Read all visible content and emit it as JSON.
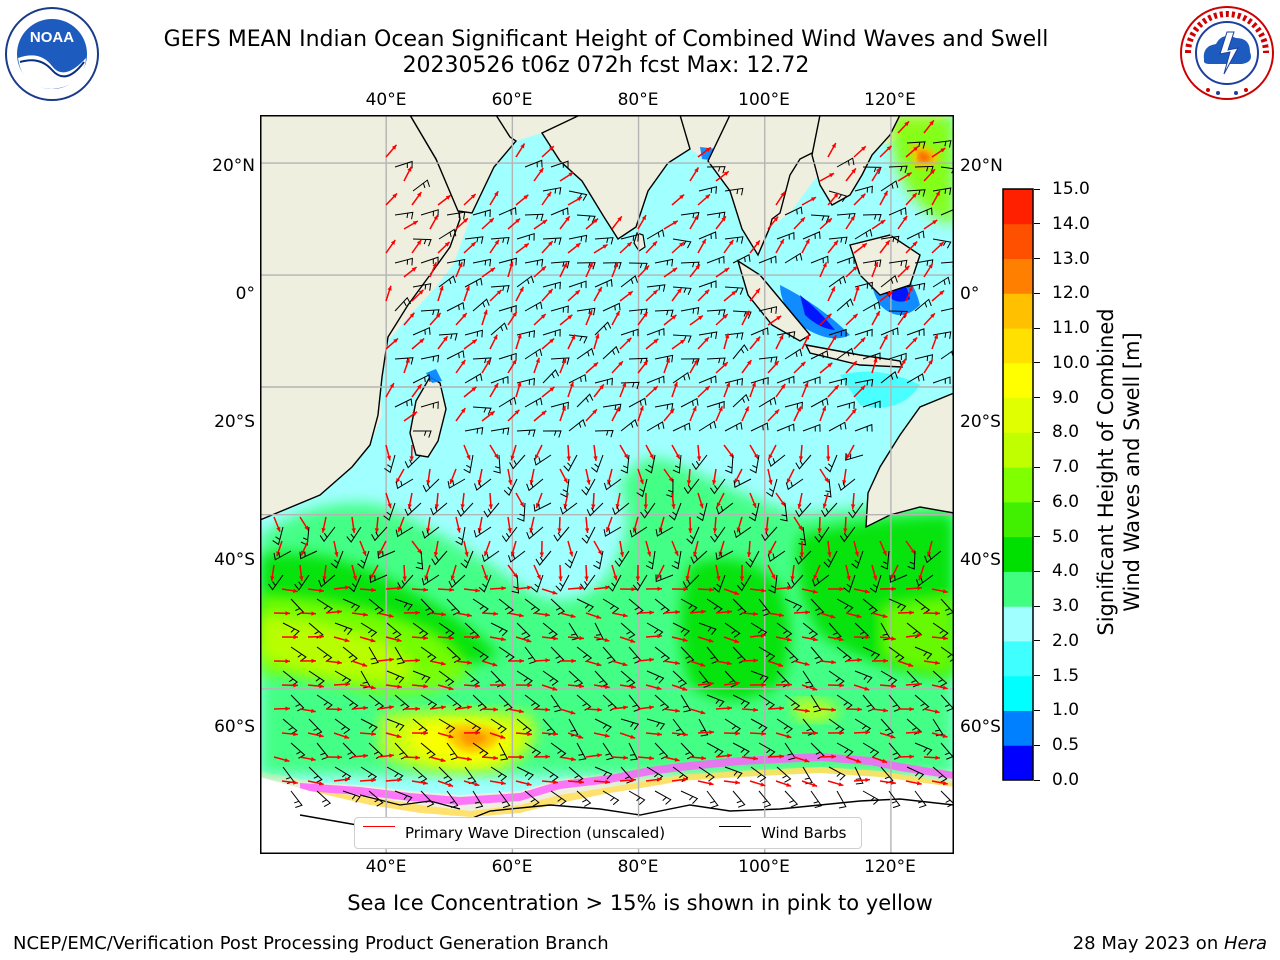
{
  "title": {
    "line1": "GEFS MEAN Indian Ocean Significant Height of Combined Wind Waves and Swell",
    "line2": "20230526 t06z 072h fcst   Max: 12.72"
  },
  "logos": {
    "left": "NOAA",
    "left_ring_text": "NATIONAL OCEANIC AND ATMOSPHERIC ADMINISTRATION · U.S. DEPARTMENT OF COMMERCE",
    "right_ring_text": "NATIONAL WEATHER SERVICE"
  },
  "map": {
    "lon_range": [
      20,
      130
    ],
    "lat_range": [
      -72,
      28
    ],
    "lon_ticks": [
      "40°E",
      "60°E",
      "80°E",
      "100°E",
      "120°E"
    ],
    "lat_ticks": [
      "20°N",
      "0°",
      "20°S",
      "40°S",
      "60°S"
    ],
    "grid": true,
    "land_color": "#efefdf",
    "ice_color": "#ffffff"
  },
  "legend": {
    "placement": "bottom-center",
    "wave_label": "Primary Wave Direction (unscaled)",
    "wave_color": "#ff0000",
    "barb_label": "Wind Barbs",
    "barb_color": "#000000"
  },
  "colorbar": {
    "title_line1": "Significant Height of Combined",
    "title_line2": "Wind Waves and Swell [m]",
    "labels": [
      "0.0",
      "0.5",
      "1.0",
      "1.5",
      "2.0",
      "3.0",
      "4.0",
      "5.0",
      "6.0",
      "7.0",
      "8.0",
      "9.0",
      "10.0",
      "11.0",
      "12.0",
      "13.0",
      "14.0",
      "15.0"
    ],
    "colors": [
      "#0000ff",
      "#0080ff",
      "#00ffff",
      "#40ffff",
      "#a0ffff",
      "#40ff80",
      "#00e000",
      "#40f000",
      "#80ff00",
      "#c0ff00",
      "#e0ff00",
      "#ffff00",
      "#ffe000",
      "#ffc000",
      "#ff8000",
      "#ff5000",
      "#ff2000"
    ]
  },
  "note": "Sea Ice Concentration > 15% is shown in pink to yellow",
  "footer": {
    "left": "NCEP/EMC/Verification Post Processing Product Generation Branch",
    "date": "28 May 2023 on ",
    "host": "Hera"
  }
}
